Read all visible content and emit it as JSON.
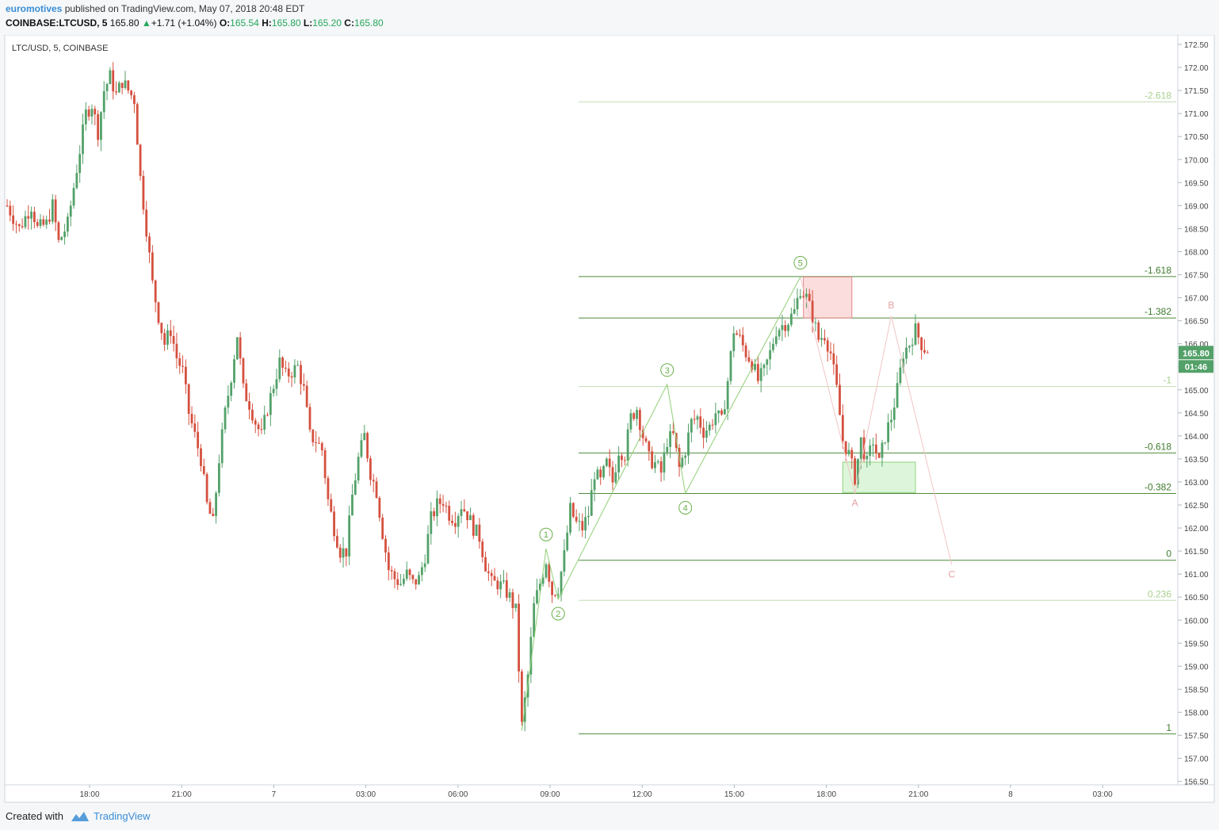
{
  "header": {
    "author": "euromotives",
    "published": "published on TradingView.com, May 07, 2018 20:48 EDT",
    "symbol": "COINBASE:LTCUSD, 5",
    "last": "165.80",
    "change_arrow": "▲",
    "change": "+1.71 (+1.04%)",
    "o_label": "O:",
    "o_value": "165.54",
    "h_label": "H:",
    "h_value": "165.80",
    "l_label": "L:",
    "l_value": "165.20",
    "c_label": "C:",
    "c_value": "165.80"
  },
  "footer": {
    "created_with": "Created with",
    "brand": "TradingView"
  },
  "colors": {
    "up": "#53a169",
    "down": "#d5503f",
    "fib_line": "#4f8a3a",
    "fib_light": "#c3ddb5",
    "wave_label": "#6ab04c",
    "abc_label": "#e5a0a0",
    "accent": "#3a8dd5"
  },
  "chart_data": {
    "type": "candlestick",
    "title": "LTC/USD, 5, COINBASE",
    "ylim": [
      156.25,
      172.75
    ],
    "y_ticks": [
      "156.50",
      "157.00",
      "157.50",
      "158.00",
      "158.50",
      "159.00",
      "159.50",
      "160.00",
      "160.50",
      "161.00",
      "161.50",
      "162.00",
      "162.50",
      "163.00",
      "163.50",
      "164.00",
      "164.50",
      "165.00",
      "165.50",
      "166.00",
      "166.50",
      "167.00",
      "167.50",
      "168.00",
      "168.50",
      "169.00",
      "169.50",
      "170.00",
      "170.50",
      "171.00",
      "171.50",
      "172.00",
      "172.50"
    ],
    "x_ticks": [
      "18:00",
      "21:00",
      "7",
      "03:00",
      "06:00",
      "09:00",
      "12:00",
      "15:00",
      "18:00",
      "21:00",
      "8",
      "03:00"
    ],
    "last_price_label": "165.80",
    "countdown_label": "01:46",
    "close_path_key": [
      [
        0,
        169.0
      ],
      [
        4,
        168.5
      ],
      [
        8,
        169.0
      ],
      [
        10,
        168.5
      ],
      [
        13,
        168.6
      ],
      [
        15,
        169.0
      ],
      [
        17,
        168.2
      ],
      [
        20,
        168.6
      ],
      [
        22,
        169.4
      ],
      [
        26,
        171.0
      ],
      [
        28,
        171.2
      ],
      [
        30,
        170.6
      ],
      [
        32,
        171.5
      ],
      [
        34,
        171.8
      ],
      [
        36,
        171.4
      ],
      [
        38,
        171.7
      ],
      [
        40,
        171.5
      ],
      [
        42,
        171.3
      ],
      [
        44,
        169.6
      ],
      [
        46,
        168.5
      ],
      [
        48,
        167.3
      ],
      [
        50,
        166.6
      ],
      [
        52,
        166.0
      ],
      [
        54,
        166.3
      ],
      [
        56,
        165.7
      ],
      [
        58,
        165.4
      ],
      [
        60,
        164.5
      ],
      [
        62,
        164.0
      ],
      [
        64,
        163.5
      ],
      [
        66,
        162.5
      ],
      [
        68,
        162.1
      ],
      [
        70,
        163.5
      ],
      [
        72,
        164.5
      ],
      [
        74,
        165.3
      ],
      [
        76,
        166.2
      ],
      [
        78,
        165.0
      ],
      [
        80,
        164.7
      ],
      [
        82,
        164.3
      ],
      [
        84,
        164.0
      ],
      [
        86,
        164.6
      ],
      [
        88,
        165.1
      ],
      [
        90,
        165.6
      ],
      [
        92,
        165.3
      ],
      [
        94,
        165.4
      ],
      [
        96,
        165.5
      ],
      [
        98,
        165.0
      ],
      [
        100,
        164.0
      ],
      [
        102,
        163.9
      ],
      [
        104,
        163.7
      ],
      [
        106,
        162.6
      ],
      [
        108,
        162.0
      ],
      [
        110,
        161.5
      ],
      [
        112,
        161.5
      ],
      [
        114,
        162.7
      ],
      [
        116,
        163.5
      ],
      [
        118,
        164.0
      ],
      [
        120,
        163.2
      ],
      [
        122,
        162.8
      ],
      [
        124,
        161.9
      ],
      [
        126,
        161.1
      ],
      [
        128,
        160.9
      ],
      [
        130,
        160.8
      ],
      [
        132,
        161.0
      ],
      [
        134,
        160.8
      ],
      [
        136,
        160.9
      ],
      [
        138,
        161.4
      ],
      [
        140,
        162.2
      ],
      [
        142,
        162.5
      ],
      [
        144,
        162.6
      ],
      [
        146,
        162.3
      ],
      [
        148,
        162.2
      ],
      [
        150,
        162.5
      ],
      [
        152,
        162.3
      ],
      [
        154,
        162.0
      ],
      [
        156,
        161.8
      ],
      [
        158,
        161.2
      ],
      [
        160,
        160.8
      ],
      [
        162,
        160.8
      ],
      [
        164,
        160.7
      ],
      [
        166,
        160.5
      ],
      [
        168,
        160.2
      ],
      [
        170,
        157.7
      ],
      [
        172,
        158.8
      ],
      [
        174,
        160.3
      ],
      [
        176,
        160.8
      ],
      [
        178,
        161.3
      ],
      [
        180,
        160.6
      ],
      [
        182,
        160.7
      ],
      [
        184,
        161.4
      ],
      [
        186,
        162.4
      ],
      [
        188,
        162.1
      ],
      [
        190,
        162.0
      ],
      [
        192,
        162.3
      ],
      [
        194,
        163.2
      ],
      [
        196,
        163.0
      ],
      [
        198,
        163.4
      ],
      [
        200,
        163.0
      ],
      [
        202,
        163.7
      ],
      [
        204,
        163.6
      ],
      [
        206,
        164.4
      ],
      [
        208,
        164.6
      ],
      [
        210,
        164.0
      ],
      [
        212,
        163.5
      ],
      [
        214,
        163.4
      ],
      [
        216,
        163.2
      ],
      [
        218,
        163.9
      ],
      [
        220,
        164.0
      ],
      [
        222,
        163.3
      ],
      [
        224,
        163.7
      ],
      [
        226,
        164.3
      ],
      [
        228,
        164.4
      ],
      [
        230,
        164.1
      ],
      [
        232,
        164.2
      ],
      [
        234,
        164.5
      ],
      [
        236,
        164.3
      ],
      [
        238,
        165.2
      ],
      [
        240,
        166.3
      ],
      [
        242,
        166.1
      ],
      [
        244,
        165.8
      ],
      [
        246,
        165.6
      ],
      [
        248,
        165.2
      ],
      [
        250,
        165.4
      ],
      [
        252,
        165.8
      ],
      [
        254,
        166.3
      ],
      [
        256,
        166.4
      ],
      [
        258,
        166.5
      ],
      [
        260,
        166.7
      ],
      [
        262,
        167.2
      ],
      [
        264,
        167.0
      ],
      [
        266,
        166.6
      ],
      [
        268,
        166.1
      ],
      [
        270,
        166.2
      ],
      [
        272,
        165.8
      ],
      [
        274,
        165.0
      ],
      [
        276,
        163.9
      ],
      [
        278,
        163.6
      ],
      [
        280,
        163.1
      ],
      [
        282,
        163.9
      ],
      [
        284,
        163.4
      ],
      [
        286,
        163.9
      ],
      [
        288,
        163.4
      ],
      [
        290,
        164.0
      ],
      [
        292,
        164.4
      ],
      [
        294,
        165.0
      ],
      [
        296,
        165.8
      ],
      [
        298,
        166.0
      ],
      [
        300,
        166.3
      ],
      [
        302,
        166.0
      ],
      [
        304,
        165.8
      ]
    ],
    "fib_levels": [
      {
        "label": "-2.618",
        "price": 171.25,
        "style": "light"
      },
      {
        "label": "-1.618",
        "price": 167.46,
        "style": "solid"
      },
      {
        "label": "-1.382",
        "price": 166.56,
        "style": "solid"
      },
      {
        "label": "-1",
        "price": 165.07,
        "style": "light"
      },
      {
        "label": "-0.618",
        "price": 163.63,
        "style": "solid"
      },
      {
        "label": "-0.382",
        "price": 162.75,
        "style": "solid"
      },
      {
        "label": "0",
        "price": 161.3,
        "style": "solid"
      },
      {
        "label": "0.236",
        "price": 160.43,
        "style": "light"
      },
      {
        "label": "1",
        "price": 157.53,
        "style": "solid"
      }
    ],
    "zones": [
      {
        "name": "target-zone-top",
        "kind": "red",
        "x_from_bar": 263,
        "x_to_bar": 279,
        "price_high": 167.45,
        "price_low": 166.56
      },
      {
        "name": "target-zone-bottom",
        "kind": "green",
        "x_from_bar": 276,
        "x_to_bar": 300,
        "price_high": 163.43,
        "price_low": 162.77
      }
    ],
    "impulse_waves": [
      {
        "label": "1",
        "bar": 178,
        "price": 161.55
      },
      {
        "label": "2",
        "bar": 182,
        "price": 160.45
      },
      {
        "label": "3",
        "bar": 218,
        "price": 165.12
      },
      {
        "label": "4",
        "bar": 224,
        "price": 162.75
      },
      {
        "label": "5",
        "bar": 262,
        "price": 167.45
      }
    ],
    "correction_waves": [
      {
        "label": "A",
        "bar": 280,
        "price": 162.75
      },
      {
        "label": "B",
        "bar": 292,
        "price": 166.6
      },
      {
        "label": "C",
        "bar": 312,
        "price": 161.2
      }
    ]
  }
}
